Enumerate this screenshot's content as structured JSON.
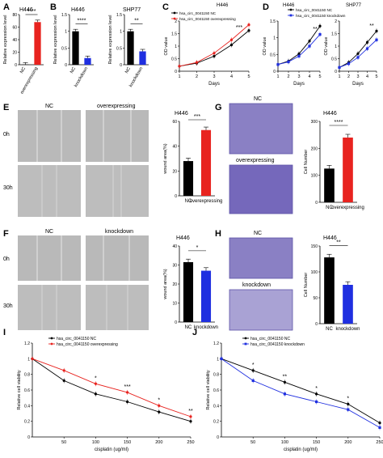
{
  "cell_line": "H446",
  "cell_line_2": "SHP77",
  "panels": {
    "A": {
      "letter": "A",
      "label_nc": "NC",
      "label_ov": "overexpressing",
      "ylabel": "Relative expression level",
      "sig": "****"
    },
    "B": {
      "letter": "B",
      "label_nc": "NC",
      "label_kd": "knockdown",
      "ylabel": "Relative expression level",
      "sig1": "****",
      "sig2": "**"
    },
    "C": {
      "letter": "C",
      "legend": [
        "hsa_circ_0041150 NC",
        "hsa_circ_0041150 overexpressing"
      ],
      "xlabel": "Days",
      "ylabel": "OD value",
      "sig": "***"
    },
    "D": {
      "letter": "D",
      "legend": [
        "hsa_circ_0041150 NC",
        "hsa_circ_0041150 knockdown"
      ],
      "xlabel": "Days",
      "ylabel": "OD value",
      "sig1": "**",
      "sig2": "**"
    },
    "E": {
      "letter": "E",
      "col1": "NC",
      "col2": "overexpressing",
      "row1": "0h",
      "row2": "30h",
      "ylabel": "wound area(%)",
      "sig": "***"
    },
    "F": {
      "letter": "F",
      "col1": "NC",
      "col2": "knockdown",
      "row1": "0h",
      "row2": "30h",
      "ylabel": "wound area(%)",
      "sig": "*"
    },
    "G": {
      "letter": "G",
      "top_label": "NC",
      "bottom_label": "overexpressing",
      "ylabel": "Cell Number",
      "sig": "****"
    },
    "H": {
      "letter": "H",
      "top_label": "NC",
      "bottom_label": "knockdown",
      "ylabel": "Cell Number",
      "sig": "**"
    },
    "I": {
      "letter": "I",
      "legend": [
        "hsa_circ_0041150 NC",
        "hsa_circ_0041150 overexpressing"
      ],
      "xlabel": "cisplatin (ug/ml)",
      "ylabel": "Relative cell viability",
      "stars": [
        "*",
        "***",
        "*",
        "**"
      ]
    },
    "J": {
      "letter": "J",
      "legend": [
        "hsa_circ_0041150 NC",
        "hsa_circ_0041150 knockdown"
      ],
      "xlabel": "cisplatin (ug/ml)",
      "ylabel": "Relative cell viability",
      "stars": [
        "*",
        "**",
        "*",
        "*"
      ]
    }
  },
  "colors": {
    "nc": "#000000",
    "overexpressing": "#e8231f",
    "knockdown": "#1f2fe0",
    "micrograph": "#b9b9b9",
    "transwell": "#8a80c4"
  },
  "chart_data": [
    {
      "id": "A",
      "type": "bar",
      "categories": [
        "NC",
        "overexpressing"
      ],
      "values": [
        0.3,
        68
      ],
      "ylim": [
        0,
        80
      ],
      "yticks": [
        0,
        20,
        40,
        60,
        80
      ]
    },
    {
      "id": "B1",
      "type": "bar",
      "categories": [
        "NC",
        "knockdown"
      ],
      "values": [
        1.0,
        0.2
      ],
      "ylim": [
        0,
        1.5
      ],
      "yticks": [
        0,
        0.5,
        1.0,
        1.5
      ]
    },
    {
      "id": "B2",
      "type": "bar",
      "categories": [
        "NC",
        "knockdown"
      ],
      "values": [
        1.0,
        0.4
      ],
      "ylim": [
        0,
        1.5
      ],
      "yticks": [
        0,
        0.5,
        1.0,
        1.5
      ]
    },
    {
      "id": "C",
      "type": "line",
      "x": [
        1,
        2,
        3,
        4,
        5
      ],
      "series": [
        {
          "name": "hsa_circ_0041150 NC",
          "values": [
            0.2,
            0.32,
            0.6,
            1.05,
            1.62
          ]
        },
        {
          "name": "hsa_circ_0041150 overexpressing",
          "values": [
            0.2,
            0.35,
            0.72,
            1.25,
            1.85
          ]
        }
      ],
      "ylim": [
        0,
        2
      ],
      "yticks": [
        0,
        0.5,
        1.0,
        1.5,
        2.0
      ]
    },
    {
      "id": "D1",
      "type": "line",
      "x": [
        1,
        2,
        3,
        4,
        5
      ],
      "series": [
        {
          "name": "hsa_circ_0041150 NC",
          "values": [
            0.2,
            0.3,
            0.52,
            0.9,
            1.35
          ]
        },
        {
          "name": "hsa_circ_0041150 knockdown",
          "values": [
            0.2,
            0.28,
            0.45,
            0.75,
            1.1
          ]
        }
      ],
      "ylim": [
        0,
        1.5
      ],
      "yticks": [
        0,
        0.5,
        1.0,
        1.5
      ]
    },
    {
      "id": "D2",
      "type": "line",
      "x": [
        1,
        2,
        3,
        4,
        5
      ],
      "series": [
        {
          "name": "hsa_circ_0041150 NC",
          "values": [
            0.15,
            0.35,
            0.7,
            1.15,
            1.6
          ]
        },
        {
          "name": "hsa_circ_0041150 knockdown",
          "values": [
            0.15,
            0.3,
            0.55,
            0.9,
            1.25
          ]
        }
      ],
      "ylim": [
        0,
        2
      ],
      "yticks": [
        0,
        0.5,
        1.0,
        1.5,
        2.0
      ]
    },
    {
      "id": "E",
      "type": "bar",
      "categories": [
        "NC",
        "overexpressing"
      ],
      "values": [
        28,
        53
      ],
      "ylim": [
        0,
        60
      ],
      "yticks": [
        0,
        20,
        40,
        60
      ]
    },
    {
      "id": "F",
      "type": "bar",
      "categories": [
        "NC",
        "knockdown"
      ],
      "values": [
        31.5,
        27
      ],
      "ylim": [
        0,
        40
      ],
      "yticks": [
        0,
        10,
        20,
        30,
        40
      ]
    },
    {
      "id": "G",
      "type": "bar",
      "categories": [
        "NC",
        "overexpressing"
      ],
      "values": [
        125,
        240
      ],
      "ylim": [
        0,
        300
      ],
      "yticks": [
        0,
        100,
        200,
        300
      ]
    },
    {
      "id": "H",
      "type": "bar",
      "categories": [
        "NC",
        "knockdown"
      ],
      "values": [
        128,
        75
      ],
      "ylim": [
        0,
        150
      ],
      "yticks": [
        0,
        50,
        100,
        150
      ]
    },
    {
      "id": "I",
      "type": "line",
      "x": [
        0,
        50,
        100,
        150,
        200,
        250
      ],
      "series": [
        {
          "name": "hsa_circ_0041150 NC",
          "values": [
            1.0,
            0.72,
            0.55,
            0.45,
            0.32,
            0.2
          ]
        },
        {
          "name": "hsa_circ_0041150 overexpressing",
          "values": [
            1.0,
            0.85,
            0.68,
            0.57,
            0.4,
            0.26
          ]
        }
      ],
      "ylim": [
        0,
        1.2
      ],
      "yticks": [
        0,
        0.2,
        0.4,
        0.6,
        0.8,
        1.0,
        1.2
      ],
      "xticks": [
        50,
        100,
        150,
        200,
        250
      ]
    },
    {
      "id": "J",
      "type": "line",
      "x": [
        0,
        50,
        100,
        150,
        200,
        250
      ],
      "series": [
        {
          "name": "hsa_circ_0041150 NC",
          "values": [
            1.0,
            0.85,
            0.7,
            0.55,
            0.42,
            0.18
          ]
        },
        {
          "name": "hsa_circ_0041150 knockdown",
          "values": [
            1.0,
            0.72,
            0.55,
            0.45,
            0.35,
            0.12
          ]
        }
      ],
      "ylim": [
        0,
        1.2
      ],
      "yticks": [
        0,
        0.2,
        0.4,
        0.6,
        0.8,
        1.0,
        1.2
      ],
      "xticks": [
        50,
        100,
        150,
        200,
        250
      ]
    }
  ]
}
